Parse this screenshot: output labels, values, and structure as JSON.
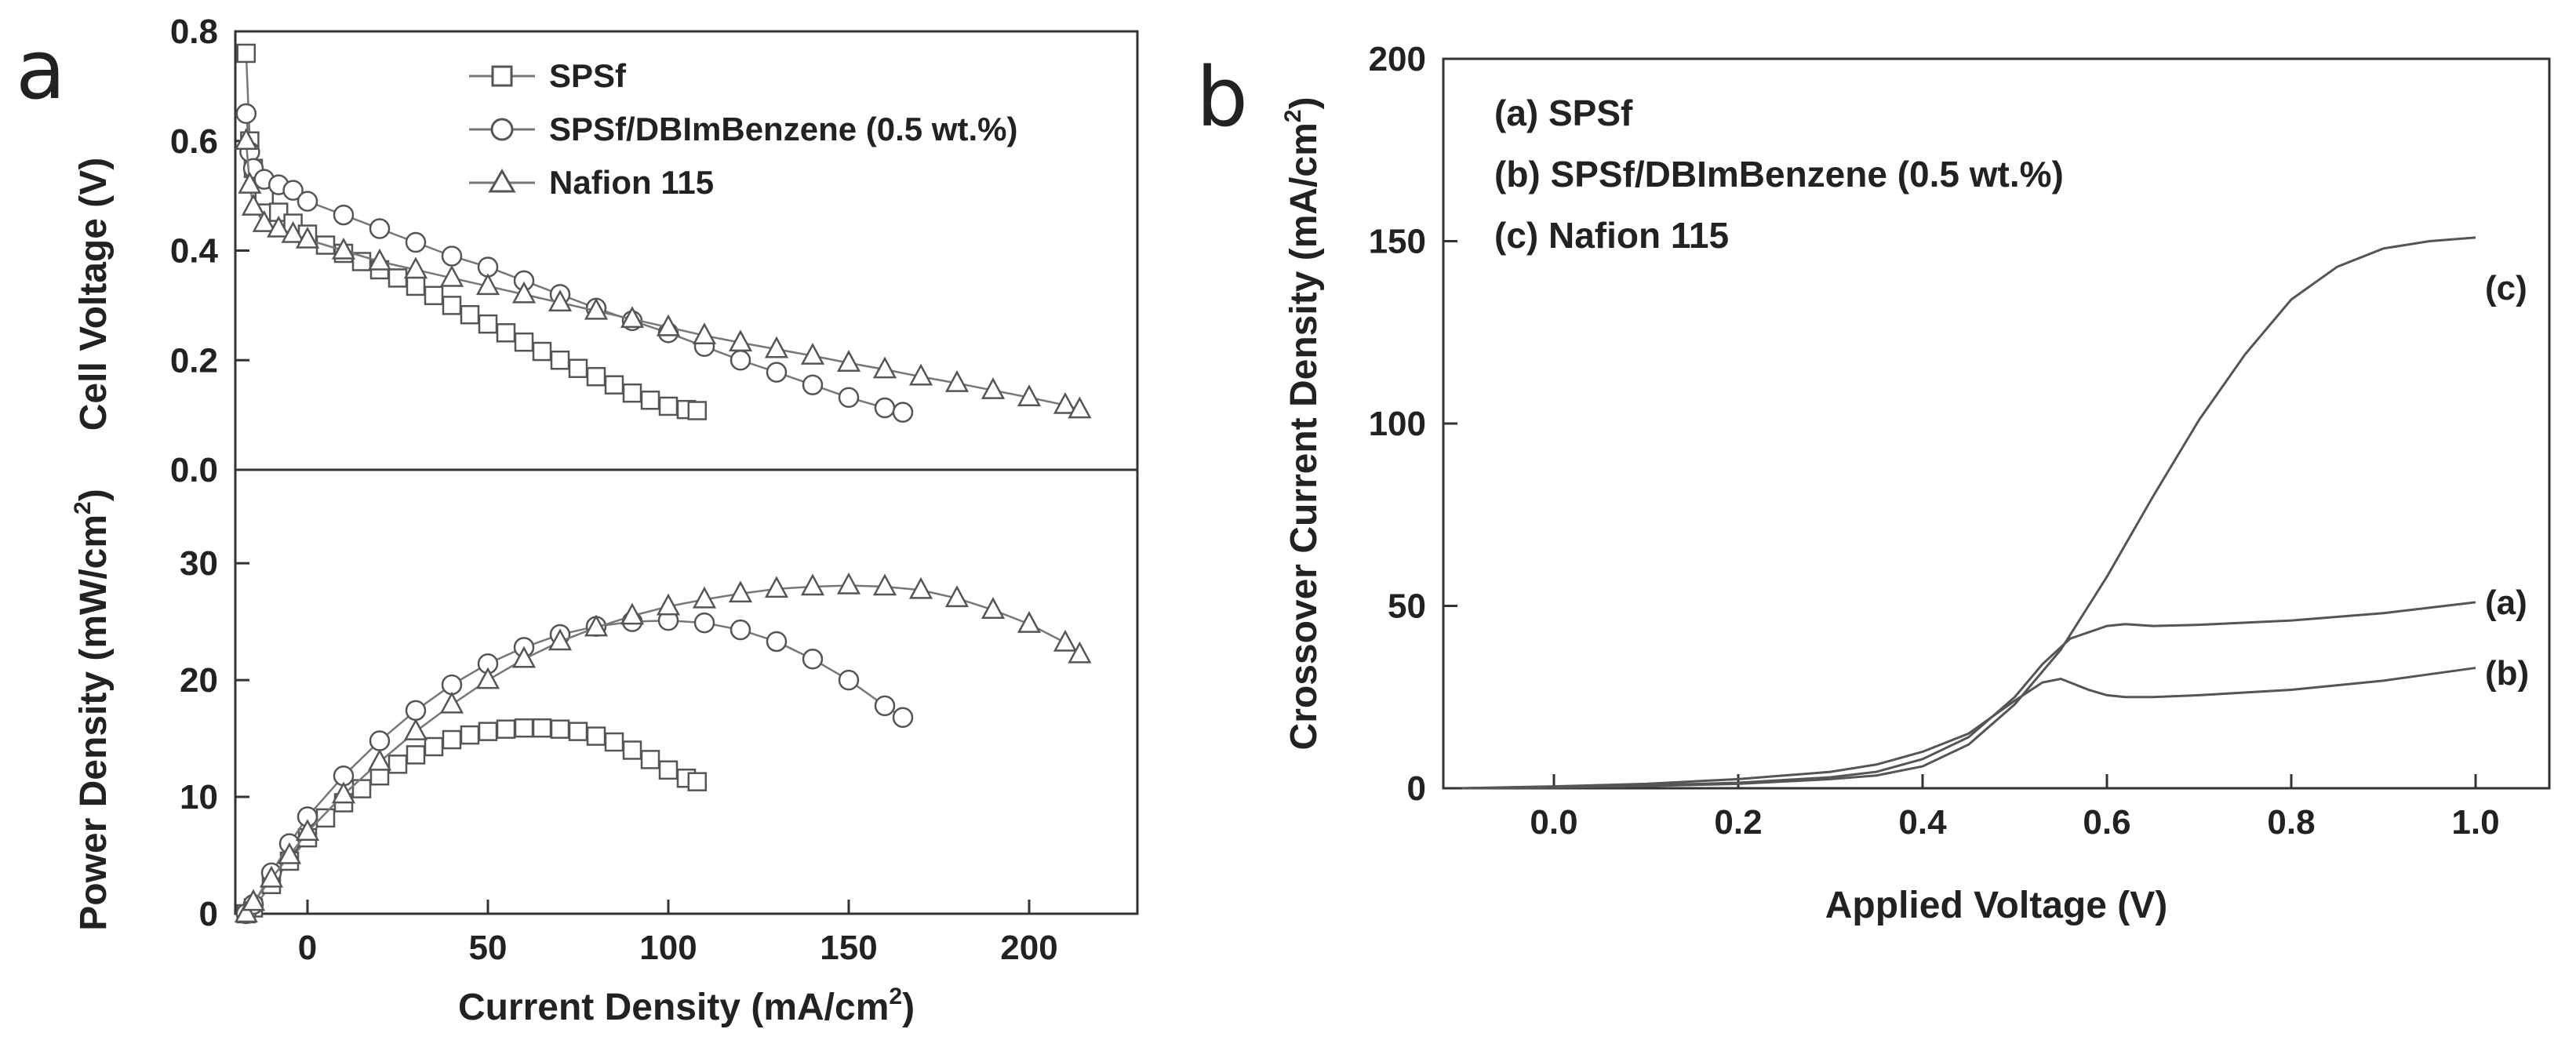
{
  "chart_data": [
    {
      "panel": "a",
      "type": "scatter",
      "xlabel": "Current Density (mA/cm",
      "xlabel_sup": "2",
      "xlabel_end": ")",
      "xlim": [
        -20,
        230
      ],
      "x_ticks": [
        0,
        50,
        100,
        150,
        200
      ],
      "x_tick_labels": [
        "0",
        "50",
        "100",
        "150",
        "200"
      ],
      "top": {
        "ylabel": "Cell Voltage (V)",
        "ylim": [
          0.0,
          0.8
        ],
        "y_ticks": [
          0.0,
          0.2,
          0.4,
          0.6,
          0.8
        ],
        "y_tick_labels": [
          "0.0",
          "0.2",
          "0.4",
          "0.6",
          "0.8"
        ],
        "series": [
          {
            "name": "SPSf",
            "marker": "square",
            "x": [
              -17,
              -16,
              -15,
              -12,
              -8,
              -4,
              0,
              5,
              10,
              15,
              20,
              25,
              30,
              35,
              40,
              45,
              50,
              55,
              60,
              65,
              70,
              75,
              80,
              85,
              90,
              95,
              100,
              105,
              108
            ],
            "y": [
              0.76,
              0.6,
              0.55,
              0.5,
              0.47,
              0.45,
              0.43,
              0.41,
              0.395,
              0.38,
              0.365,
              0.35,
              0.335,
              0.318,
              0.3,
              0.283,
              0.266,
              0.25,
              0.233,
              0.216,
              0.2,
              0.185,
              0.17,
              0.155,
              0.14,
              0.127,
              0.116,
              0.11,
              0.108
            ]
          },
          {
            "name": "SPSf/DBImBenzene (0.5 wt.%)",
            "marker": "circle",
            "x": [
              -17,
              -16,
              -15,
              -12,
              -8,
              -4,
              0,
              10,
              20,
              30,
              40,
              50,
              60,
              70,
              80,
              90,
              100,
              110,
              120,
              130,
              140,
              150,
              160,
              165
            ],
            "y": [
              0.65,
              0.58,
              0.55,
              0.53,
              0.52,
              0.51,
              0.49,
              0.465,
              0.44,
              0.415,
              0.39,
              0.37,
              0.345,
              0.32,
              0.295,
              0.272,
              0.25,
              0.225,
              0.2,
              0.178,
              0.155,
              0.132,
              0.113,
              0.105
            ]
          },
          {
            "name": "Nafion 115",
            "marker": "triangle",
            "x": [
              -17,
              -16,
              -15,
              -12,
              -8,
              -4,
              0,
              10,
              20,
              30,
              40,
              50,
              60,
              70,
              80,
              90,
              100,
              110,
              120,
              130,
              140,
              150,
              160,
              170,
              180,
              190,
              200,
              210,
              214
            ],
            "y": [
              0.6,
              0.52,
              0.48,
              0.45,
              0.44,
              0.43,
              0.42,
              0.4,
              0.38,
              0.365,
              0.35,
              0.335,
              0.32,
              0.305,
              0.29,
              0.275,
              0.26,
              0.245,
              0.232,
              0.22,
              0.208,
              0.195,
              0.183,
              0.17,
              0.158,
              0.145,
              0.132,
              0.118,
              0.11
            ]
          }
        ]
      },
      "bottom": {
        "ylabel": "Power Density (mW/cm",
        "ylabel_sup": "2",
        "ylabel_end": ")",
        "ylim": [
          0,
          38
        ],
        "y_ticks": [
          0,
          10,
          20,
          30
        ],
        "y_tick_labels": [
          "0",
          "10",
          "20",
          "30"
        ],
        "series": [
          {
            "name": "SPSf",
            "marker": "square",
            "x": [
              -17,
              -15,
              -10,
              -5,
              0,
              5,
              10,
              15,
              20,
              25,
              30,
              35,
              40,
              45,
              50,
              55,
              60,
              65,
              70,
              75,
              80,
              85,
              90,
              95,
              100,
              105,
              108
            ],
            "y": [
              0,
              0.5,
              2.5,
              4.5,
              6.5,
              8.2,
              9.5,
              10.7,
              11.8,
              12.8,
              13.6,
              14.3,
              14.9,
              15.3,
              15.6,
              15.8,
              15.9,
              15.9,
              15.8,
              15.6,
              15.2,
              14.7,
              14.0,
              13.2,
              12.3,
              11.6,
              11.3
            ]
          },
          {
            "name": "SPSf/DBImBenzene (0.5 wt.%)",
            "marker": "circle",
            "x": [
              -17,
              -15,
              -10,
              -5,
              0,
              10,
              20,
              30,
              40,
              50,
              60,
              70,
              80,
              90,
              100,
              110,
              120,
              130,
              140,
              150,
              160,
              165
            ],
            "y": [
              0,
              0.8,
              3.5,
              6,
              8.3,
              11.8,
              14.8,
              17.4,
              19.6,
              21.4,
              22.8,
              23.9,
              24.6,
              25.0,
              25.1,
              24.9,
              24.3,
              23.3,
              21.8,
              20.0,
              17.8,
              16.8
            ]
          },
          {
            "name": "Nafion 115",
            "marker": "triangle",
            "x": [
              -17,
              -15,
              -10,
              -5,
              0,
              10,
              20,
              30,
              40,
              50,
              60,
              70,
              80,
              90,
              100,
              110,
              120,
              130,
              140,
              150,
              160,
              170,
              180,
              190,
              200,
              210,
              214
            ],
            "y": [
              0,
              1.0,
              3.0,
              5.0,
              7.0,
              10.2,
              13.0,
              15.6,
              17.9,
              20.0,
              21.8,
              23.3,
              24.5,
              25.5,
              26.3,
              26.9,
              27.4,
              27.8,
              28.0,
              28.1,
              28.0,
              27.7,
              27.0,
              26.0,
              24.8,
              23.2,
              22.2
            ]
          }
        ]
      },
      "legend": {
        "position": "top-right",
        "entries": [
          "SPSf",
          "SPSf/DBImBenzene (0.5 wt.%)",
          "Nafion 115"
        ]
      }
    },
    {
      "panel": "b",
      "type": "line",
      "xlabel": "Applied Voltage (V)",
      "ylabel": "Crossover Current Density (mA/cm",
      "ylabel_sup": "2",
      "ylabel_end": ")",
      "xlim": [
        -0.12,
        1.08
      ],
      "ylim": [
        0,
        200
      ],
      "x_ticks": [
        0.0,
        0.2,
        0.4,
        0.6,
        0.8,
        1.0
      ],
      "x_tick_labels": [
        "0.0",
        "0.2",
        "0.4",
        "0.6",
        "0.8",
        "1.0"
      ],
      "y_ticks": [
        0,
        50,
        100,
        150,
        200
      ],
      "y_tick_labels": [
        "0",
        "50",
        "100",
        "150",
        "200"
      ],
      "annotations": [
        "(a) SPSf",
        "(b) SPSf/DBImBenzene (0.5 wt.%)",
        "(c) Nafion 115"
      ],
      "series": [
        {
          "name": "(a)",
          "x": [
            -0.1,
            0.0,
            0.1,
            0.2,
            0.3,
            0.35,
            0.4,
            0.45,
            0.5,
            0.53,
            0.56,
            0.6,
            0.62,
            0.65,
            0.7,
            0.8,
            0.9,
            1.0
          ],
          "y": [
            0,
            0.3,
            0.8,
            1.5,
            3,
            4.5,
            8,
            14,
            25,
            34,
            41,
            44.5,
            45,
            44.5,
            44.8,
            46,
            48,
            51
          ]
        },
        {
          "name": "(b)",
          "x": [
            -0.1,
            0.0,
            0.1,
            0.2,
            0.3,
            0.35,
            0.4,
            0.45,
            0.5,
            0.53,
            0.55,
            0.58,
            0.6,
            0.62,
            0.65,
            0.7,
            0.8,
            0.9,
            1.0
          ],
          "y": [
            0,
            0.5,
            1.2,
            2.5,
            4.5,
            6.5,
            10,
            15,
            24,
            29,
            30,
            27,
            25.5,
            25,
            25,
            25.5,
            27,
            29.5,
            33
          ]
        },
        {
          "name": "(c)",
          "x": [
            -0.1,
            0.0,
            0.1,
            0.2,
            0.3,
            0.35,
            0.4,
            0.45,
            0.5,
            0.55,
            0.6,
            0.65,
            0.7,
            0.75,
            0.8,
            0.85,
            0.9,
            0.95,
            1.0
          ],
          "y": [
            0,
            0.2,
            0.6,
            1.2,
            2.5,
            3.5,
            6,
            12,
            23,
            38,
            58,
            80,
            101,
            119,
            134,
            143,
            148,
            150,
            151
          ]
        }
      ]
    }
  ],
  "panel_letters": {
    "a": "a",
    "b": "b"
  },
  "curve_labels": {
    "a": "(a)",
    "b": "(b)",
    "c": "(c)"
  }
}
